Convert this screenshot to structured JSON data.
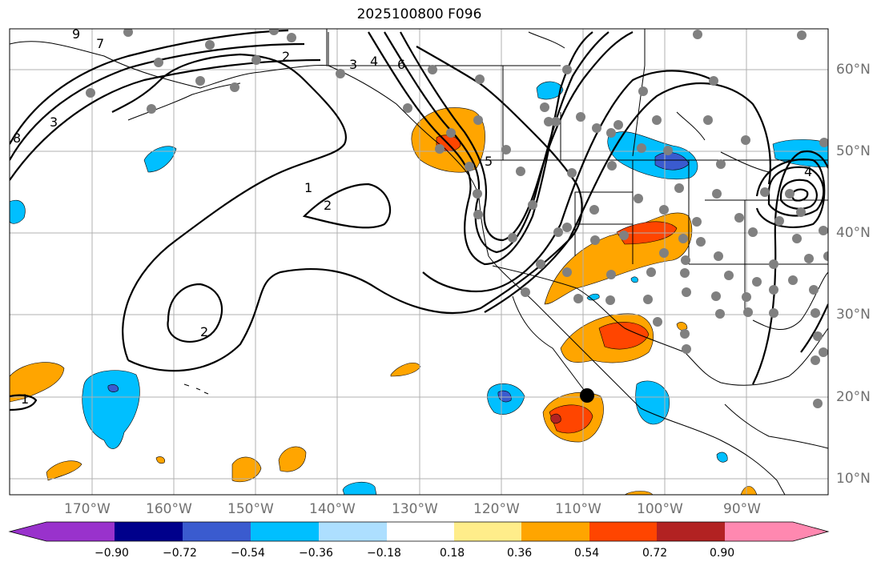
{
  "title": "2025100800 F096",
  "lon_labels": [
    "170°W",
    "160°W",
    "150°W",
    "140°W",
    "130°W",
    "120°W",
    "110°W",
    "100°W",
    "90°W"
  ],
  "lat_labels": [
    "60°N",
    "50°N",
    "40°N",
    "30°N",
    "20°N",
    "10°N"
  ],
  "colorbar": {
    "colors": [
      "#9932CC",
      "#00008B",
      "#3A5BCF",
      "#00BFFF",
      "#ADDFFF",
      "#FFFFFF",
      "#FFED8A",
      "#FFA500",
      "#FF4500",
      "#B22222",
      "#FF88B0"
    ],
    "ticks": [
      "−0.90",
      "−0.72",
      "−0.54",
      "−0.36",
      "−0.18",
      "0.18",
      "0.36",
      "0.54",
      "0.72",
      "0.90"
    ]
  },
  "contour_labels": [
    "1",
    "2",
    "2",
    "3",
    "4",
    "5",
    "6",
    "7",
    "8",
    "9",
    "1",
    "2",
    "3",
    "4"
  ],
  "marker": {
    "name": "black-dot",
    "lon": -109,
    "lat": 20
  }
}
